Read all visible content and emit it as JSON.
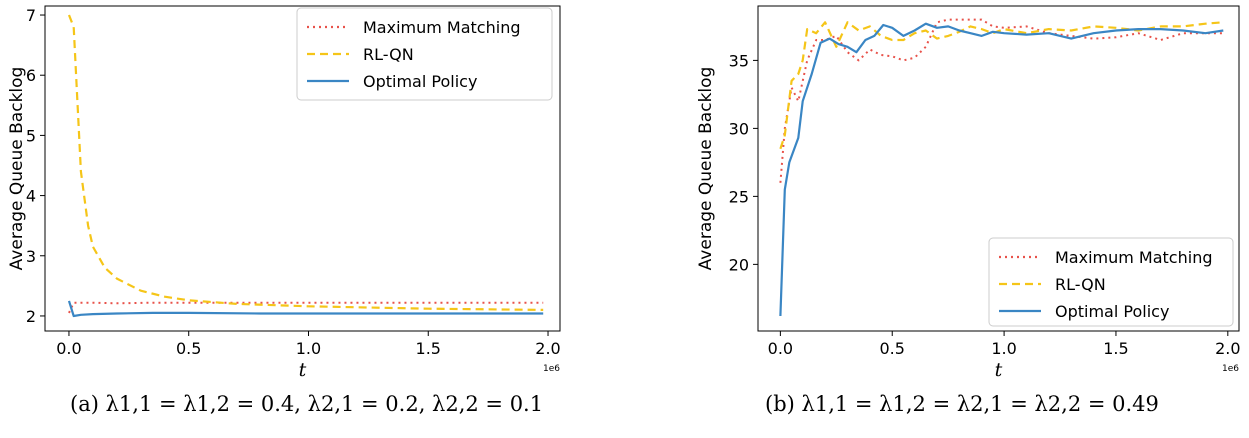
{
  "captions": [
    {
      "tag": "(a)",
      "math": "λ1,1 = λ1,2 = 0.4, λ2,1 = 0.2, λ2,2 = 0.1"
    },
    {
      "tag": "(b)",
      "math": "λ1,1 = λ1,2 = λ2,1 = λ2,2 = 0.49"
    }
  ],
  "colors": {
    "maximum_matching": "#e8524a",
    "rl_qn": "#f5c518",
    "optimal_policy": "#3a86c4"
  },
  "chart_data": [
    {
      "type": "line",
      "title": "",
      "xlabel": "t",
      "ylabel": "Average Queue Backlog",
      "x_offset_label": "1e6",
      "xlim": [
        -0.1,
        2.05
      ],
      "ylim": [
        1.75,
        7.15
      ],
      "xticks": [
        0.0,
        0.5,
        1.0,
        1.5,
        2.0
      ],
      "xtick_labels": [
        "0.0",
        "0.5",
        "1.0",
        "1.5",
        "2.0"
      ],
      "yticks": [
        2,
        3,
        4,
        5,
        6,
        7
      ],
      "ytick_labels": [
        "2",
        "3",
        "4",
        "5",
        "6",
        "7"
      ],
      "legend_position": "top-right",
      "grid": false,
      "series": [
        {
          "name": "Maximum Matching",
          "style": "dotted",
          "x": [
            0.0,
            0.02,
            0.1,
            0.2,
            0.35,
            0.5,
            0.8,
            1.0,
            1.5,
            1.98
          ],
          "y": [
            2.05,
            2.22,
            2.22,
            2.21,
            2.22,
            2.22,
            2.22,
            2.22,
            2.22,
            2.22
          ]
        },
        {
          "name": "RL-QN",
          "style": "dashed",
          "x": [
            0.0,
            0.02,
            0.05,
            0.08,
            0.1,
            0.15,
            0.2,
            0.3,
            0.4,
            0.5,
            0.7,
            1.0,
            1.5,
            1.98
          ],
          "y": [
            7.0,
            6.8,
            4.4,
            3.5,
            3.15,
            2.8,
            2.62,
            2.42,
            2.32,
            2.26,
            2.2,
            2.16,
            2.12,
            2.1
          ]
        },
        {
          "name": "Optimal Policy",
          "style": "solid",
          "x": [
            0.0,
            0.02,
            0.05,
            0.1,
            0.2,
            0.35,
            0.5,
            0.8,
            1.0,
            1.5,
            1.98
          ],
          "y": [
            2.25,
            2.0,
            2.02,
            2.03,
            2.04,
            2.05,
            2.05,
            2.04,
            2.04,
            2.04,
            2.04
          ]
        }
      ]
    },
    {
      "type": "line",
      "title": "",
      "xlabel": "t",
      "ylabel": "Average Queue Backlog",
      "x_offset_label": "1e6",
      "xlim": [
        -0.1,
        2.05
      ],
      "ylim": [
        15.1,
        39.0
      ],
      "xticks": [
        0.0,
        0.5,
        1.0,
        1.5,
        2.0
      ],
      "xtick_labels": [
        "0.0",
        "0.5",
        "1.0",
        "1.5",
        "2.0"
      ],
      "yticks": [
        20,
        25,
        30,
        35
      ],
      "ytick_labels": [
        "20",
        "25",
        "30",
        "35"
      ],
      "legend_position": "lower-right",
      "grid": false,
      "series": [
        {
          "name": "Maximum Matching",
          "style": "dotted",
          "x": [
            0.0,
            0.02,
            0.05,
            0.08,
            0.12,
            0.16,
            0.2,
            0.25,
            0.3,
            0.35,
            0.4,
            0.45,
            0.5,
            0.55,
            0.6,
            0.65,
            0.7,
            0.75,
            0.8,
            0.85,
            0.9,
            0.95,
            1.0,
            1.1,
            1.2,
            1.3,
            1.4,
            1.5,
            1.6,
            1.7,
            1.8,
            1.9,
            1.98
          ],
          "y": [
            26.0,
            30.0,
            33.0,
            32.0,
            35.0,
            36.5,
            36.5,
            36.8,
            35.6,
            35.0,
            35.8,
            35.4,
            35.3,
            35.0,
            35.2,
            36.0,
            37.8,
            38.0,
            38.0,
            38.0,
            38.0,
            37.5,
            37.4,
            37.5,
            37.0,
            36.8,
            36.6,
            36.7,
            37.0,
            36.5,
            37.0,
            37.0,
            37.0
          ]
        },
        {
          "name": "RL-QN",
          "style": "dashed",
          "x": [
            0.0,
            0.02,
            0.05,
            0.08,
            0.1,
            0.12,
            0.16,
            0.2,
            0.25,
            0.3,
            0.35,
            0.4,
            0.45,
            0.5,
            0.55,
            0.6,
            0.65,
            0.7,
            0.75,
            0.8,
            0.85,
            0.9,
            0.95,
            1.0,
            1.1,
            1.2,
            1.3,
            1.4,
            1.5,
            1.6,
            1.7,
            1.8,
            1.9,
            1.98
          ],
          "y": [
            28.5,
            29.5,
            33.5,
            34.0,
            35.0,
            37.3,
            37.0,
            37.8,
            36.0,
            37.8,
            37.2,
            37.5,
            36.8,
            36.5,
            36.5,
            37.0,
            37.2,
            36.6,
            36.8,
            37.1,
            37.5,
            37.3,
            37.0,
            37.3,
            37.0,
            37.3,
            37.2,
            37.5,
            37.4,
            37.2,
            37.5,
            37.5,
            37.7,
            37.8
          ]
        },
        {
          "name": "Optimal Policy",
          "style": "solid",
          "x": [
            0.0,
            0.02,
            0.04,
            0.08,
            0.1,
            0.14,
            0.18,
            0.22,
            0.26,
            0.3,
            0.34,
            0.38,
            0.42,
            0.46,
            0.5,
            0.55,
            0.6,
            0.65,
            0.7,
            0.75,
            0.8,
            0.85,
            0.9,
            0.95,
            1.0,
            1.1,
            1.2,
            1.3,
            1.4,
            1.5,
            1.6,
            1.7,
            1.8,
            1.9,
            1.98
          ],
          "y": [
            16.2,
            25.5,
            27.5,
            29.3,
            32.0,
            34.0,
            36.3,
            36.6,
            36.2,
            36.0,
            35.6,
            36.5,
            36.8,
            37.6,
            37.4,
            36.8,
            37.2,
            37.7,
            37.4,
            37.5,
            37.2,
            37.0,
            36.8,
            37.1,
            37.0,
            36.9,
            37.0,
            36.6,
            37.0,
            37.2,
            37.3,
            37.3,
            37.2,
            37.0,
            37.2
          ]
        }
      ]
    }
  ]
}
